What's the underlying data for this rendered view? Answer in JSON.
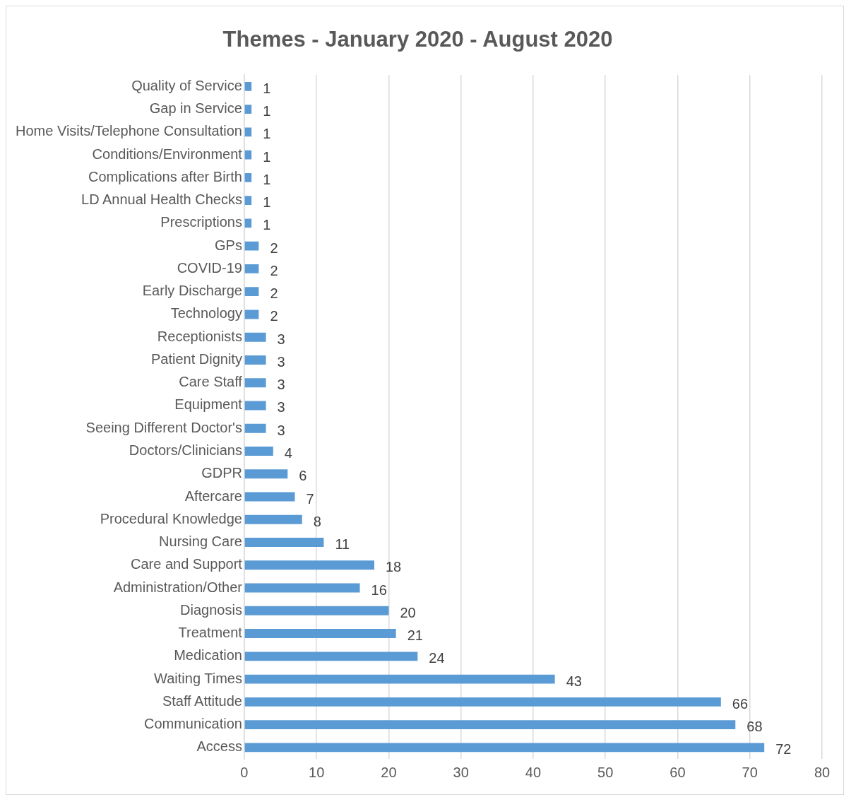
{
  "chart_data": {
    "type": "bar",
    "orientation": "horizontal",
    "title": "Themes - January 2020 - August 2020",
    "categories": [
      "Quality of Service",
      "Gap in Service",
      "Home Visits/Telephone Consultation",
      "Conditions/Environment",
      "Complications after Birth",
      "LD Annual Health Checks",
      "Prescriptions",
      "GPs",
      "COVID-19",
      "Early Discharge",
      "Technology",
      "Receptionists",
      "Patient Dignity",
      "Care Staff",
      "Equipment",
      "Seeing Different Doctor's",
      "Doctors/Clinicians",
      "GDPR",
      "Aftercare",
      "Procedural Knowledge",
      "Nursing Care",
      "Care and Support",
      "Administration/Other",
      "Diagnosis",
      "Treatment",
      "Medication",
      "Waiting Times",
      "Staff Attitude",
      "Communication",
      "Access"
    ],
    "values": [
      1,
      1,
      1,
      1,
      1,
      1,
      1,
      2,
      2,
      2,
      2,
      3,
      3,
      3,
      3,
      3,
      4,
      6,
      7,
      8,
      11,
      18,
      16,
      20,
      21,
      24,
      43,
      66,
      68,
      72
    ],
    "color": "#5b9bd5",
    "xlim": [
      0,
      80
    ],
    "xticks": [
      0,
      10,
      20,
      30,
      40,
      50,
      60,
      70,
      80
    ],
    "grid": "x",
    "data_labels": true,
    "legend": false
  }
}
